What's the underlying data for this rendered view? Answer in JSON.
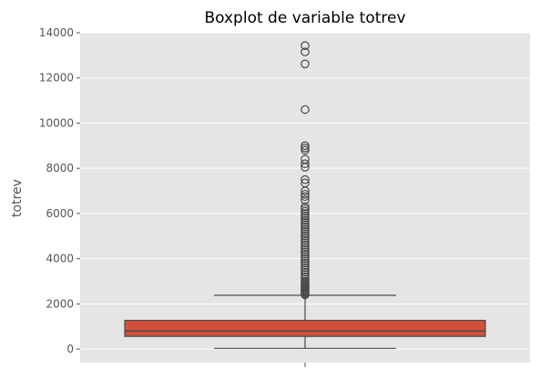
{
  "chart_data": {
    "type": "boxplot",
    "title": "Boxplot de variable totrev",
    "xlabel": "",
    "ylabel": "totrev",
    "ylim": [
      -600,
      14000
    ],
    "yticks": [
      0,
      2000,
      4000,
      6000,
      8000,
      10000,
      12000,
      14000
    ],
    "yticklabels": [
      "0",
      "2000",
      "4000",
      "6000",
      "8000",
      "10000",
      "12000",
      "14000"
    ],
    "grid": true,
    "colors": {
      "background": "#e5e5e5",
      "grid": "#ffffff",
      "box_fill": "#d1503c",
      "lines": "#4a4a4a"
    },
    "box": {
      "whisker_low": 30,
      "q1": 560,
      "median": 800,
      "q3": 1270,
      "whisker_high": 2380
    },
    "outliers": [
      13430,
      13150,
      12620,
      10600,
      9000,
      8900,
      8800,
      8400,
      8200,
      8050,
      7500,
      7350,
      7000,
      6850,
      6750,
      6600,
      6300,
      6200,
      6100,
      6000,
      5900,
      5800,
      5700,
      5600,
      5500,
      5400,
      5300,
      5200,
      5100,
      5000,
      4900,
      4800,
      4700,
      4600,
      4500,
      4400,
      4300,
      4200,
      4100,
      4000,
      3900,
      3800,
      3700,
      3600,
      3500,
      3400,
      3300,
      3200,
      3100,
      3000,
      2950,
      2900,
      2850,
      2800,
      2750,
      2700,
      2650,
      2600,
      2550,
      2500,
      2450,
      2400
    ]
  }
}
